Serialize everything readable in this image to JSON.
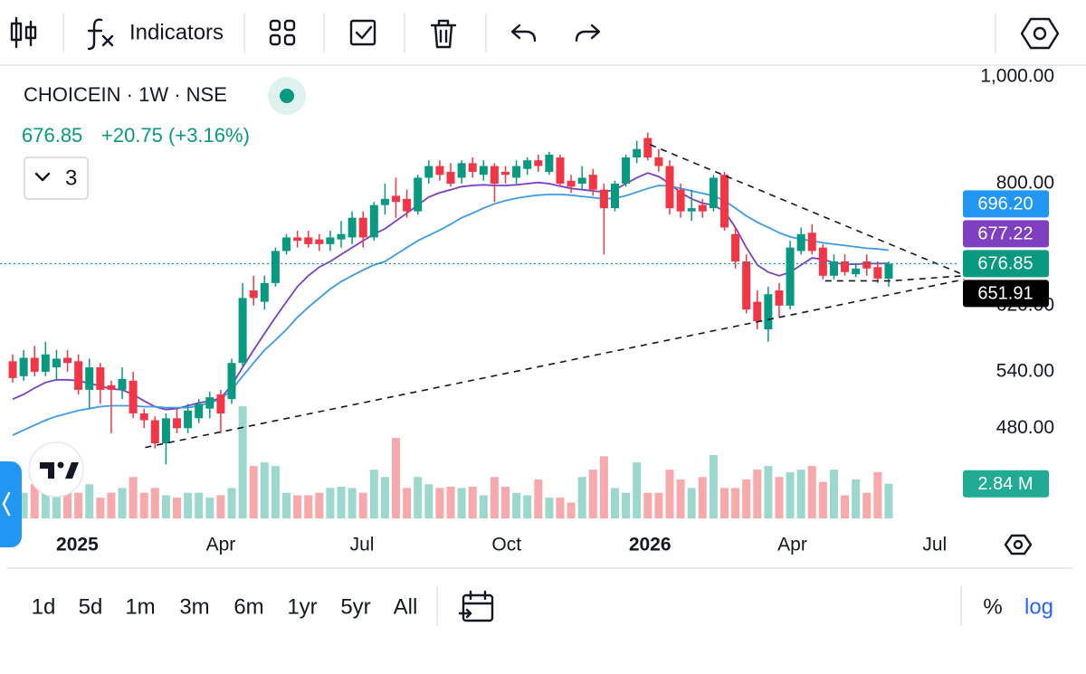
{
  "toolbar": {
    "indicators": "Indicators"
  },
  "legend": {
    "symbol": "CHOICEIN · 1W · NSE",
    "price": 676.85,
    "change": "+20.75 (+3.16%)",
    "count": "3"
  },
  "chart_data": {
    "type": "candlestick",
    "log_scale": true,
    "up_color": "#089981",
    "down_color": "#f23645",
    "volume_up_color": "#9dd8ce",
    "volume_down_color": "#f8a9ab",
    "open": [
      552,
      535,
      556,
      540,
      545,
      556,
      552,
      520,
      545,
      525,
      520,
      530,
      495,
      488,
      465,
      490,
      480,
      490,
      500,
      515,
      510,
      550,
      640,
      625,
      650,
      695,
      715,
      715,
      712,
      705,
      712,
      715,
      745,
      715,
      765,
      780,
      775,
      755,
      810,
      830,
      820,
      810,
      835,
      815,
      830,
      820,
      810,
      825,
      840,
      820,
      845,
      805,
      800,
      815,
      790,
      760,
      800,
      845,
      880,
      845,
      830,
      790,
      755,
      765,
      760,
      815,
      720,
      680,
      625,
      590,
      640,
      620,
      695,
      722,
      700,
      660,
      680,
      662,
      680,
      672,
      656
    ],
    "high": [
      560,
      565,
      570,
      575,
      565,
      565,
      560,
      555,
      550,
      530,
      545,
      540,
      500,
      492,
      495,
      500,
      505,
      510,
      518,
      520,
      555,
      650,
      660,
      660,
      700,
      720,
      725,
      725,
      720,
      725,
      740,
      755,
      755,
      770,
      800,
      810,
      790,
      815,
      840,
      840,
      835,
      840,
      845,
      840,
      835,
      830,
      840,
      845,
      850,
      855,
      850,
      815,
      830,
      825,
      800,
      805,
      850,
      875,
      890,
      860,
      840,
      800,
      790,
      775,
      815,
      820,
      730,
      690,
      640,
      645,
      650,
      710,
      730,
      735,
      705,
      690,
      690,
      678,
      690,
      680,
      680
    ],
    "low": [
      528,
      530,
      535,
      535,
      530,
      540,
      515,
      500,
      505,
      475,
      510,
      490,
      480,
      460,
      445,
      475,
      475,
      485,
      490,
      475,
      505,
      545,
      620,
      615,
      645,
      690,
      700,
      700,
      695,
      695,
      700,
      705,
      700,
      710,
      750,
      745,
      745,
      750,
      800,
      805,
      795,
      800,
      810,
      805,
      770,
      800,
      800,
      815,
      820,
      815,
      795,
      785,
      790,
      780,
      690,
      755,
      795,
      835,
      840,
      820,
      750,
      745,
      740,
      745,
      755,
      725,
      670,
      610,
      590,
      575,
      605,
      615,
      690,
      690,
      655,
      655,
      660,
      658,
      660,
      650,
      645
    ],
    "close": [
      533,
      556,
      540,
      560,
      555,
      550,
      520,
      545,
      520,
      520,
      532,
      495,
      488,
      465,
      490,
      480,
      498,
      505,
      512,
      495,
      550,
      630,
      630,
      650,
      695,
      715,
      710,
      705,
      705,
      715,
      720,
      745,
      715,
      765,
      775,
      770,
      755,
      810,
      830,
      815,
      800,
      835,
      820,
      830,
      800,
      815,
      830,
      840,
      830,
      850,
      800,
      795,
      810,
      790,
      760,
      800,
      845,
      860,
      845,
      830,
      760,
      755,
      760,
      755,
      810,
      730,
      680,
      615,
      600,
      635,
      620,
      700,
      720,
      695,
      660,
      680,
      665,
      670,
      670,
      656.1,
      676.85
    ],
    "volume": [
      2.5,
      2.1,
      2.8,
      2.1,
      1.9,
      2.5,
      2.1,
      2.8,
      1.7,
      2.1,
      2.5,
      3.4,
      2.1,
      2.5,
      1.9,
      1.7,
      2.1,
      2.1,
      1.7,
      1.9,
      2.5,
      9.2,
      4.3,
      4.6,
      4.3,
      2.1,
      1.9,
      1.9,
      2.1,
      2.5,
      2.6,
      2.5,
      2.1,
      4.0,
      3.4,
      6.6,
      2.5,
      3.4,
      2.8,
      2.5,
      2.6,
      2.5,
      2.6,
      1.9,
      3.4,
      2.6,
      2.1,
      1.9,
      3.2,
      1.7,
      1.7,
      1.3,
      3.4,
      4.0,
      5.1,
      2.5,
      2.1,
      4.6,
      2.1,
      2.1,
      4.0,
      3.2,
      2.5,
      3.4,
      5.2,
      2.5,
      2.5,
      3.2,
      4.0,
      4.3,
      3.4,
      3.8,
      4.0,
      4.3,
      3.0,
      4.0,
      1.9,
      3.2,
      2.1,
      3.8,
      2.84
    ],
    "volume_ylim": [
      0,
      37
    ],
    "moving_averages": [
      {
        "color": "#7b3fc4",
        "values": [
          510,
          515,
          522,
          528,
          531,
          531,
          530,
          527,
          524,
          521,
          520,
          515,
          508,
          502,
          499,
          500,
          503,
          506,
          508,
          511,
          525,
          545,
          565,
          585,
          605,
          625,
          645,
          660,
          672,
          680,
          690,
          700,
          710,
          720,
          728,
          740,
          752,
          765,
          778,
          785,
          790,
          795,
          797,
          798,
          797,
          797,
          798,
          800,
          802,
          800,
          796,
          792,
          790,
          788,
          786,
          790,
          800,
          810,
          818,
          812,
          800,
          785,
          775,
          768,
          765,
          755,
          730,
          700,
          675,
          665,
          660,
          665,
          675,
          685,
          683,
          678,
          676,
          676,
          677,
          677,
          677.22
        ]
      },
      {
        "color": "#3d9be6",
        "values": [
          473,
          478,
          483,
          488,
          492,
          495,
          498,
          500,
          502,
          503,
          503,
          503,
          502,
          502,
          501,
          501,
          501,
          503,
          506,
          510,
          520,
          535,
          550,
          565,
          577,
          590,
          605,
          618,
          630,
          642,
          652,
          660,
          668,
          675,
          680,
          690,
          700,
          710,
          718,
          726,
          735,
          745,
          752,
          760,
          767,
          772,
          776,
          779,
          781,
          782,
          782,
          781,
          779,
          777,
          775,
          776,
          780,
          786,
          792,
          797,
          796,
          792,
          788,
          784,
          780,
          772,
          760,
          748,
          738,
          730,
          722,
          716,
          712,
          710,
          707,
          705,
          703,
          701,
          699,
          698,
          696.2
        ]
      }
    ],
    "trendlines": [
      {
        "x": [
          58.2,
          86.9
        ],
        "y": [
          868,
          661
        ]
      },
      {
        "x": [
          12.1,
          86.9
        ],
        "y": [
          461,
          655
        ]
      },
      {
        "x": [
          74.2,
          80.3,
          86.9
        ],
        "y": [
          653,
          653,
          660
        ]
      }
    ],
    "xlim": [
      -1.16,
      86.45
    ],
    "ylim": [
      396,
      1019
    ],
    "yticks": [
      {
        "value": 480,
        "label": "480.00"
      },
      {
        "value": 540,
        "label": "540.00"
      },
      {
        "value": 620,
        "label": "620.00"
      },
      {
        "value": 800,
        "label": "800.00"
      },
      {
        "value": 1000,
        "label": "1,000.00"
      }
    ],
    "xticks": [
      {
        "value": 5.9,
        "label": "2025"
      },
      {
        "value": 19,
        "label": "Apr"
      },
      {
        "value": 31.9,
        "label": "Jul"
      },
      {
        "value": 45.1,
        "label": "Oct"
      },
      {
        "value": 58.2,
        "label": "2026"
      },
      {
        "value": 71.2,
        "label": "Apr"
      },
      {
        "value": 84.2,
        "label": "Jul"
      }
    ],
    "price_badges": [
      {
        "value": 696.2,
        "label": "696.20",
        "color": "#2196f3"
      },
      {
        "value": 677.22,
        "label": "677.22",
        "color": "#7e3fc0"
      },
      {
        "value": 676.85,
        "label": "676.85",
        "color": "#089981"
      },
      {
        "value": 651.91,
        "label": "651.91",
        "color": "#000000"
      }
    ],
    "last_price_index": 2,
    "volume_badge": {
      "value": 2.84,
      "label": "2.84 M",
      "color": "#22ab94"
    }
  },
  "range_bar": {
    "ranges": [
      "1d",
      "5d",
      "1m",
      "3m",
      "6m",
      "1yr",
      "5yr",
      "All"
    ],
    "percent": "%",
    "log": "log"
  }
}
